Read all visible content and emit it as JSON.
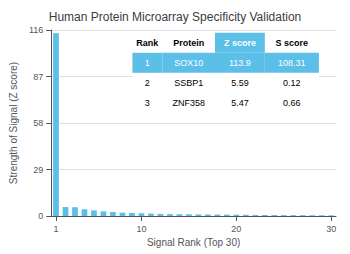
{
  "chart_data": {
    "type": "bar",
    "title": "Human Protein Microarray Specificity Validation",
    "xlabel": "Signal Rank (Top 30)",
    "ylabel": "Strength of Signal (Z score)",
    "x": [
      1,
      2,
      3,
      4,
      5,
      6,
      7,
      8,
      9,
      10,
      11,
      12,
      13,
      14,
      15,
      16,
      17,
      18,
      19,
      20,
      21,
      22,
      23,
      24,
      25,
      26,
      27,
      28,
      29,
      30
    ],
    "values": [
      113.9,
      5.59,
      5.47,
      4.2,
      3.5,
      2.9,
      2.5,
      2.1,
      1.9,
      1.7,
      1.5,
      1.3,
      1.2,
      1.1,
      1.05,
      1.0,
      0.95,
      0.9,
      0.85,
      0.8,
      0.75,
      0.7,
      0.65,
      0.62,
      0.58,
      0.55,
      0.52,
      0.49,
      0.46,
      0.43
    ],
    "color": "#5bbfe8",
    "xlim": [
      0.5,
      30.5
    ],
    "xticks": [
      1,
      10,
      20,
      30
    ],
    "ylim": [
      0,
      116
    ],
    "yticks": [
      0,
      29,
      58,
      87,
      116
    ],
    "grid": true,
    "table": {
      "rows": [
        [
          "Rank",
          "Protein",
          "Z score",
          "S score"
        ],
        [
          "1",
          "SOX10",
          "113.9",
          "108.31"
        ],
        [
          "2",
          "SSBP1",
          "5.59",
          "0.12"
        ],
        [
          "3",
          "ZNF358",
          "5.47",
          "0.66"
        ]
      ],
      "highlight_row": 1,
      "color": "#5bbfe8"
    }
  }
}
